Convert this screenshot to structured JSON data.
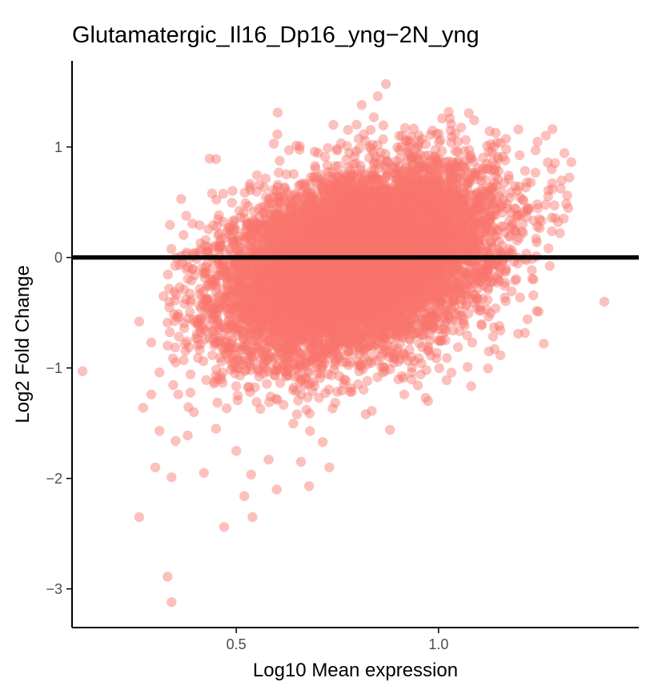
{
  "chart_data": {
    "type": "scatter",
    "title": "Glutamatergic_Il16_Dp16_yng−2N_yng",
    "xlabel": "Log10 Mean expression",
    "ylabel": "Log2 Fold Change",
    "xlim": [
      0.094,
      1.495
    ],
    "ylim": [
      -3.35,
      1.78
    ],
    "x_ticks": [
      0.5,
      1.0
    ],
    "x_tick_labels": [
      "0.5",
      "1.0"
    ],
    "y_ticks": [
      1,
      0,
      -1,
      -2,
      -3
    ],
    "y_tick_labels": [
      "1",
      "0",
      "−1",
      "−2",
      "−3"
    ],
    "reference_line_y": 0,
    "grid": false,
    "legend": "none",
    "point_color": "#F8766D",
    "reference_line_color": "#000000",
    "bulk_cloud": {
      "n_points": 9000,
      "center": [
        0.8,
        -0.05
      ],
      "sd": [
        0.17,
        0.4
      ],
      "lfc_trend_slope": 0.9
    },
    "series": [
      {
        "values": [
          [
            0.12,
            -1.03
          ],
          [
            0.26,
            -2.35
          ],
          [
            0.26,
            -0.58
          ],
          [
            0.27,
            -1.36
          ],
          [
            0.29,
            -0.77
          ],
          [
            0.3,
            -1.9
          ],
          [
            0.31,
            -1.57
          ],
          [
            0.32,
            -0.35
          ],
          [
            0.33,
            -2.89
          ],
          [
            0.34,
            -3.12
          ],
          [
            0.34,
            -1.99
          ],
          [
            0.35,
            -1.66
          ],
          [
            0.36,
            -0.27
          ],
          [
            0.44,
            0.58
          ],
          [
            0.45,
            0.89
          ],
          [
            0.45,
            -1.55
          ],
          [
            0.47,
            -2.44
          ],
          [
            0.52,
            -2.16
          ],
          [
            0.54,
            -2.35
          ],
          [
            0.6,
            -2.1
          ],
          [
            0.68,
            -2.07
          ],
          [
            0.74,
            1.2
          ],
          [
            0.81,
            1.38
          ],
          [
            0.84,
            1.27
          ],
          [
            0.85,
            1.46
          ],
          [
            0.87,
            1.57
          ],
          [
            0.98,
            1.11
          ],
          [
            1.03,
            1.15
          ],
          [
            1.12,
            1.01
          ],
          [
            1.24,
            0.97
          ],
          [
            1.27,
            0.86
          ],
          [
            1.28,
            0.8
          ],
          [
            1.28,
            0.36
          ],
          [
            1.3,
            0.22
          ],
          [
            1.41,
            -0.4
          ],
          [
            1.22,
            -0.56
          ],
          [
            1.15,
            -0.62
          ],
          [
            1.02,
            -1.11
          ],
          [
            0.97,
            -1.02
          ],
          [
            0.88,
            -1.56
          ],
          [
            0.82,
            -1.42
          ],
          [
            0.73,
            -1.9
          ],
          [
            0.66,
            -1.85
          ],
          [
            0.58,
            -1.83
          ],
          [
            0.5,
            -1.75
          ],
          [
            0.42,
            -1.95
          ],
          [
            0.38,
            -1.61
          ],
          [
            0.31,
            -1.04
          ],
          [
            0.29,
            -1.24
          ],
          [
            0.37,
            -0.93
          ]
        ]
      }
    ]
  }
}
